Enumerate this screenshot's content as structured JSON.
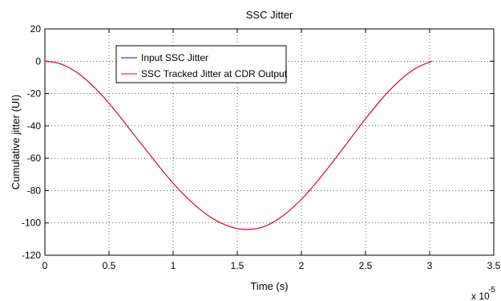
{
  "chart_data": {
    "type": "line",
    "title": "SSC Jitter",
    "xlabel": "Time (s)",
    "ylabel": "Cumulative jitter (UI)",
    "x_exponent_label": "x 10",
    "x_exponent_power": "-5",
    "xlim": [
      0,
      3.5
    ],
    "ylim": [
      -120,
      20
    ],
    "x_ticks": [
      0,
      0.5,
      1,
      1.5,
      2,
      2.5,
      3,
      3.5
    ],
    "x_tick_labels": [
      "0",
      "0.5",
      "1",
      "1.5",
      "2",
      "2.5",
      "3",
      "3.5"
    ],
    "y_ticks": [
      20,
      0,
      -20,
      -40,
      -60,
      -80,
      -100,
      -120
    ],
    "y_tick_labels": [
      "20",
      "0",
      "-20",
      "-40",
      "-60",
      "-80",
      "-100",
      "-120"
    ],
    "grid": true,
    "legend_position": "top-left",
    "series": [
      {
        "name": "Input SSC Jitter",
        "color": "#0000ff",
        "x": [
          0,
          0.1,
          0.2,
          0.3,
          0.4,
          0.5,
          0.6,
          0.7,
          0.8,
          0.9,
          1.0,
          1.1,
          1.2,
          1.3,
          1.4,
          1.5,
          1.6,
          1.7,
          1.8,
          1.9,
          2.0,
          2.1,
          2.2,
          2.3,
          2.4,
          2.5,
          2.6,
          2.7,
          2.8,
          2.9,
          3.0,
          3.02
        ],
        "y": [
          0,
          -1.1,
          -4.5,
          -10.0,
          -17.3,
          -26.0,
          -35.7,
          -46.0,
          -56.0,
          -66.0,
          -75.5,
          -83.8,
          -91.0,
          -96.8,
          -101.0,
          -103.5,
          -104.0,
          -102.5,
          -98.6,
          -92.8,
          -85.4,
          -76.6,
          -66.8,
          -56.5,
          -46.0,
          -35.6,
          -25.8,
          -17.0,
          -9.6,
          -4.0,
          -0.6,
          0
        ]
      },
      {
        "name": "SSC Tracked Jitter at CDR Output",
        "color": "#ff0000",
        "x": [
          0,
          0.1,
          0.2,
          0.3,
          0.4,
          0.5,
          0.6,
          0.7,
          0.8,
          0.9,
          1.0,
          1.1,
          1.2,
          1.3,
          1.4,
          1.5,
          1.6,
          1.7,
          1.8,
          1.9,
          2.0,
          2.1,
          2.2,
          2.3,
          2.4,
          2.5,
          2.6,
          2.7,
          2.8,
          2.9,
          3.0,
          3.02
        ],
        "y": [
          0,
          -1.1,
          -4.5,
          -10.0,
          -17.3,
          -26.0,
          -35.7,
          -46.0,
          -56.0,
          -66.0,
          -75.5,
          -83.8,
          -91.0,
          -96.8,
          -101.0,
          -103.5,
          -104.0,
          -102.5,
          -98.6,
          -92.8,
          -85.4,
          -76.6,
          -66.8,
          -56.5,
          -46.0,
          -35.6,
          -25.8,
          -17.0,
          -9.6,
          -4.0,
          -0.6,
          0
        ]
      }
    ]
  }
}
